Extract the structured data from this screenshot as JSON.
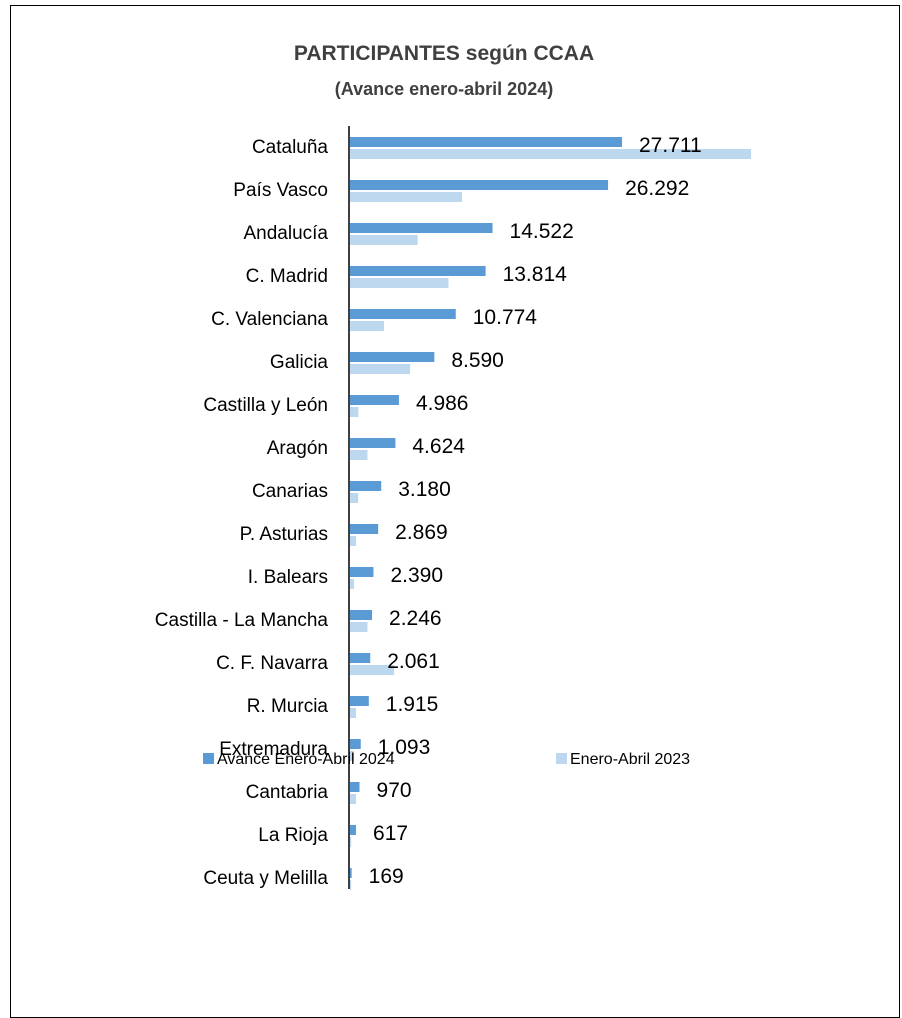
{
  "chart_data": {
    "type": "bar",
    "orientation": "horizontal",
    "title": "PARTICIPANTES  según CCAA",
    "subtitle": "(Avance enero-abril 2024)",
    "categories": [
      "Cataluña",
      "País Vasco",
      "Andalucía",
      "C. Madrid",
      "C. Valenciana",
      "Galicia",
      "Castilla y León",
      "Aragón",
      "Canarias",
      "P. Asturias",
      "I. Balears",
      "Castilla - La Mancha",
      "C. F. Navarra",
      "R. Murcia",
      "Extremadura",
      "Cantabria",
      "La Rioja",
      "Ceuta y Melilla"
    ],
    "series": [
      {
        "name": "Avance Enero-Abril 2024",
        "color": "#5b9bd5",
        "values": [
          27711,
          26292,
          14522,
          13814,
          10774,
          8590,
          4986,
          4624,
          3180,
          2869,
          2390,
          2246,
          2061,
          1915,
          1093,
          970,
          617,
          169
        ],
        "labels": [
          "27.711",
          "26.292",
          "14.522",
          "13.814",
          "10.774",
          "8.590",
          "4.986",
          "4.624",
          "3.180",
          "2.869",
          "2.390",
          "2.246",
          "2.061",
          "1.915",
          "1.093",
          "970",
          "617",
          "169"
        ]
      },
      {
        "name": "Enero-Abril 2023",
        "color": "#bdd7ee",
        "values": [
          40860,
          11410,
          6890,
          10030,
          3460,
          6120,
          850,
          1780,
          830,
          610,
          410,
          1780,
          4490,
          610,
          410,
          610,
          120,
          120
        ]
      }
    ],
    "grid": false,
    "legend_position": "bottom"
  }
}
